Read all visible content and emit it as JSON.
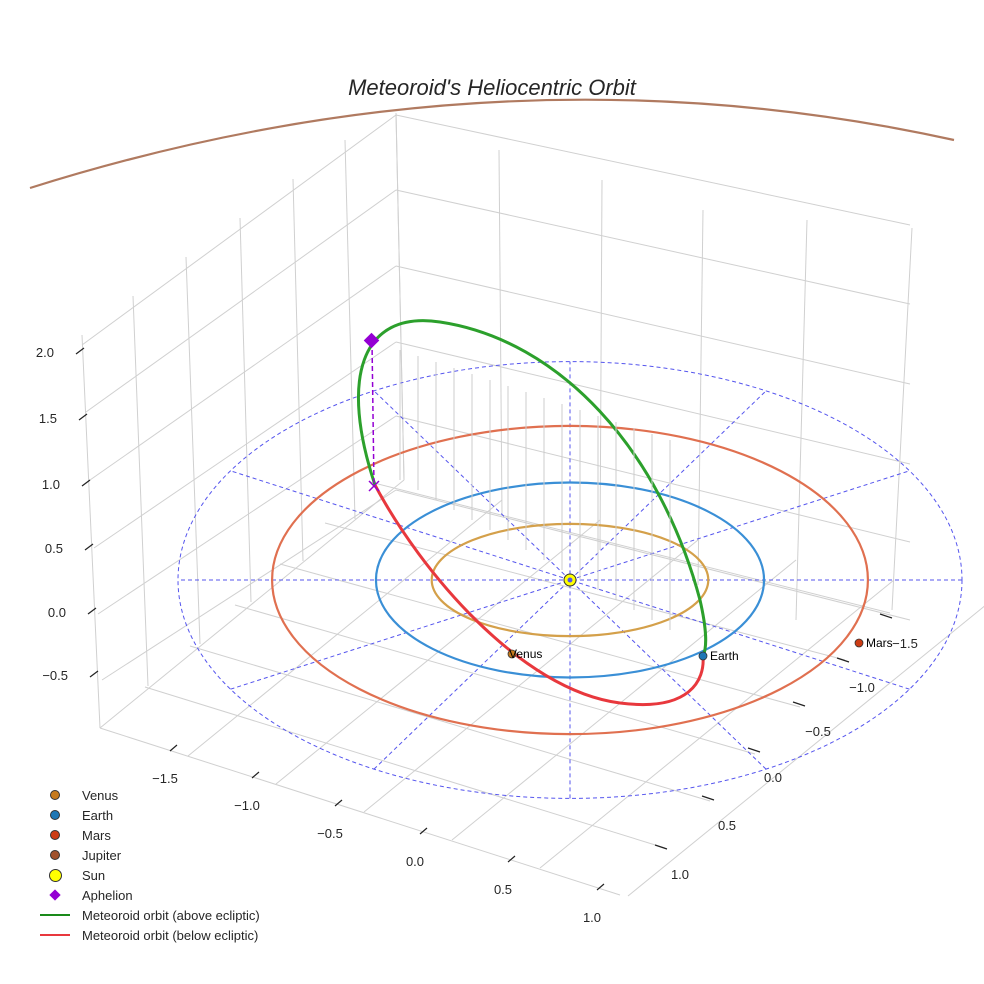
{
  "chart_data": {
    "type": "scatter",
    "title": "Meteoroid's Heliocentric Orbit",
    "projection": "3d",
    "axes": {
      "x": {
        "ticks": [
          -1.5,
          -1.0,
          -0.5,
          0.0,
          0.5,
          1.0
        ],
        "tick_labels": [
          "−1.5",
          "−1.0",
          "−0.5",
          "0.0",
          "0.5",
          "1.0"
        ],
        "range": [
          -1.8,
          1.1
        ]
      },
      "y": {
        "ticks": [
          -1.5,
          -1.0,
          -0.5,
          0.0,
          0.5,
          1.0
        ],
        "tick_labels": [
          "−1.5",
          "−1.0",
          "−0.5",
          "0.0",
          "0.5",
          "1.0"
        ],
        "range": [
          -1.6,
          1.2
        ]
      },
      "z": {
        "ticks": [
          -0.5,
          0.0,
          0.5,
          1.0,
          1.5,
          2.0
        ],
        "tick_labels": [
          "−0.5",
          "0.0",
          "0.5",
          "1.0",
          "1.5",
          "2.0"
        ],
        "range": [
          -0.9,
          2.6
        ]
      },
      "grid": true
    },
    "planets": [
      {
        "name": "Venus",
        "orbit_radius_au": 0.72,
        "color": "#d4a04a",
        "marker_color": "#c67a1d",
        "label": "Venus"
      },
      {
        "name": "Earth",
        "orbit_radius_au": 1.0,
        "color": "#3a8fd6",
        "marker_color": "#1f77b4",
        "label": "Earth"
      },
      {
        "name": "Mars",
        "orbit_radius_au": 1.52,
        "color": "#e07050",
        "marker_color": "#cc3c14",
        "label": "Mars"
      },
      {
        "name": "Jupiter",
        "orbit_radius_au": 5.2,
        "color": "#b07a60",
        "marker_color": "#a0522d",
        "label": ""
      }
    ],
    "sun": {
      "name": "Sun",
      "position": [
        0,
        0,
        0
      ],
      "color": "#ffff00"
    },
    "reference_circle_au": 2.0,
    "meteoroid_orbit": {
      "above_ecliptic_color": "#2ca02c",
      "below_ecliptic_color": "#e8383d",
      "aphelion_approx_height_au": 2.0
    },
    "aphelion": {
      "color": "#9400d3",
      "marker": "diamond"
    },
    "legend": {
      "placement": "bottom-left",
      "items": [
        {
          "label": "Venus",
          "kind": "dot",
          "color": "#c67a1d"
        },
        {
          "label": "Earth",
          "kind": "dot",
          "color": "#1f77b4"
        },
        {
          "label": "Mars",
          "kind": "dot",
          "color": "#cc3c14"
        },
        {
          "label": "Jupiter",
          "kind": "dot",
          "color": "#a0522d"
        },
        {
          "label": "Sun",
          "kind": "sun",
          "color": "#ffff00"
        },
        {
          "label": "Aphelion",
          "kind": "diamond",
          "color": "#9400d3"
        },
        {
          "label": "Meteoroid orbit (above ecliptic)",
          "kind": "line",
          "color": "#1a8a1a"
        },
        {
          "label": "Meteoroid orbit (below ecliptic)",
          "kind": "line",
          "color": "#e8383d"
        }
      ]
    }
  }
}
